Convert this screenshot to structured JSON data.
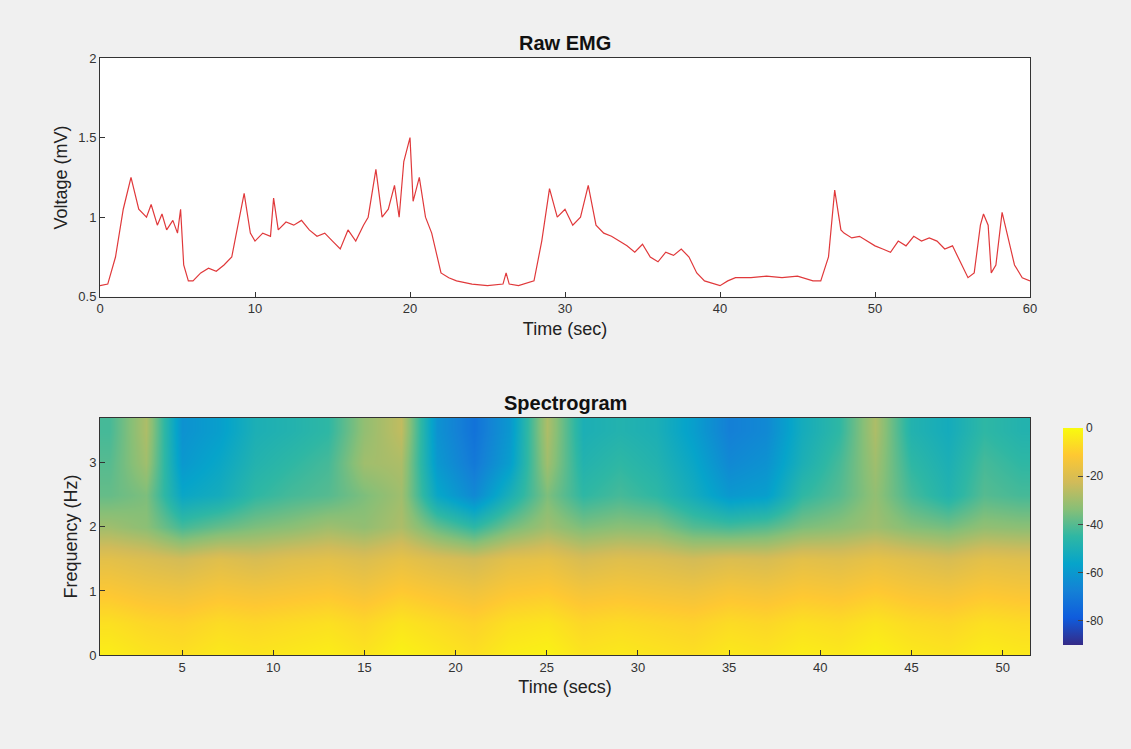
{
  "chart_data": [
    {
      "type": "line",
      "title": "Raw EMG",
      "x_label": "Time (sec)",
      "y_label": "Voltage (mV)",
      "color": "#e0393b",
      "grid": false,
      "xlim": [
        0,
        60
      ],
      "ylim": [
        0.5,
        2
      ],
      "xticks": [
        0,
        10,
        20,
        30,
        40,
        50,
        60
      ],
      "yticks": [
        0.5,
        1,
        1.5,
        2
      ],
      "x": [
        0,
        0.5,
        1,
        1.5,
        2,
        2.5,
        3,
        3.3,
        3.7,
        4,
        4.3,
        4.7,
        5,
        5.2,
        5.4,
        5.7,
        6,
        6.5,
        7,
        7.5,
        8,
        8.5,
        9,
        9.3,
        9.7,
        10,
        10.5,
        11,
        11.2,
        11.5,
        12,
        12.5,
        13,
        13.5,
        14,
        14.5,
        15,
        15.5,
        16,
        16.5,
        17,
        17.3,
        17.8,
        18.2,
        18.6,
        19,
        19.3,
        19.6,
        20,
        20.2,
        20.6,
        21,
        21.4,
        22,
        22.5,
        23,
        24,
        25,
        26,
        26.2,
        26.4,
        27,
        28,
        28.5,
        29,
        29.5,
        30,
        30.5,
        31,
        31.5,
        32,
        32.5,
        33,
        33.5,
        34,
        34.5,
        35,
        35.5,
        36,
        36.5,
        37,
        37.5,
        38,
        38.5,
        39,
        40,
        40.5,
        41,
        42,
        43,
        44,
        45,
        46,
        46.5,
        47,
        47.4,
        47.8,
        48,
        48.5,
        49,
        50,
        50.5,
        51,
        51.5,
        52,
        52.5,
        53,
        53.5,
        54,
        54.5,
        55,
        55.5,
        56,
        56.4,
        56.8,
        57,
        57.3,
        57.5,
        57.8,
        58.2,
        58.5,
        59,
        59.5,
        60
      ],
      "values": [
        0.57,
        0.58,
        0.75,
        1.05,
        1.25,
        1.05,
        1.0,
        1.08,
        0.95,
        1.02,
        0.92,
        0.98,
        0.9,
        1.05,
        0.7,
        0.6,
        0.6,
        0.65,
        0.68,
        0.66,
        0.7,
        0.75,
        1.0,
        1.15,
        0.9,
        0.85,
        0.9,
        0.88,
        1.12,
        0.92,
        0.97,
        0.95,
        0.98,
        0.92,
        0.88,
        0.9,
        0.85,
        0.8,
        0.92,
        0.85,
        0.95,
        1.0,
        1.3,
        1.0,
        1.05,
        1.2,
        1.0,
        1.35,
        1.5,
        1.1,
        1.25,
        1.0,
        0.9,
        0.65,
        0.62,
        0.6,
        0.58,
        0.57,
        0.58,
        0.65,
        0.58,
        0.57,
        0.6,
        0.85,
        1.18,
        1.0,
        1.05,
        0.95,
        1.0,
        1.2,
        0.95,
        0.9,
        0.88,
        0.85,
        0.82,
        0.78,
        0.83,
        0.75,
        0.72,
        0.78,
        0.76,
        0.8,
        0.75,
        0.65,
        0.6,
        0.57,
        0.6,
        0.62,
        0.62,
        0.63,
        0.62,
        0.63,
        0.6,
        0.6,
        0.75,
        1.17,
        0.92,
        0.9,
        0.87,
        0.88,
        0.82,
        0.8,
        0.78,
        0.85,
        0.82,
        0.88,
        0.85,
        0.87,
        0.85,
        0.8,
        0.82,
        0.72,
        0.62,
        0.65,
        0.95,
        1.02,
        0.95,
        0.65,
        0.7,
        1.03,
        0.9,
        0.7,
        0.62,
        0.6
      ]
    },
    {
      "type": "heatmap",
      "title": "Spectrogram",
      "x_label": "Time (secs)",
      "y_label": "Frequency (Hz)",
      "grid": false,
      "xlim": [
        0.5,
        51.5
      ],
      "ylim": [
        0,
        3.7
      ],
      "xticks": [
        5,
        10,
        15,
        20,
        25,
        30,
        35,
        40,
        45,
        50
      ],
      "yticks": [
        0,
        1,
        2,
        3
      ],
      "zlim": [
        -90,
        0
      ],
      "zticks": [
        0,
        -20,
        -40,
        -60,
        -80
      ],
      "x": [
        1,
        3,
        5,
        7,
        9,
        11,
        13,
        15,
        17,
        19,
        21,
        23,
        25,
        27,
        29,
        31,
        33,
        35,
        37,
        39,
        41,
        43,
        45,
        47,
        49,
        51
      ],
      "y": [
        0,
        0.5,
        1,
        1.5,
        2,
        2.5,
        3,
        3.5
      ],
      "z": [
        [
          -3,
          -5,
          -6,
          -4,
          -5,
          -4,
          -3,
          -5,
          -2,
          -4,
          -6,
          -3,
          -2,
          -5,
          -4,
          -5,
          -6,
          -4,
          -5,
          -3,
          -4,
          -2,
          -4,
          -5,
          -3,
          -4
        ],
        [
          -6,
          -8,
          -9,
          -7,
          -8,
          -7,
          -6,
          -8,
          -5,
          -7,
          -9,
          -6,
          -5,
          -8,
          -7,
          -8,
          -9,
          -7,
          -8,
          -6,
          -7,
          -5,
          -7,
          -8,
          -6,
          -7
        ],
        [
          -12,
          -14,
          -15,
          -13,
          -14,
          -13,
          -12,
          -14,
          -11,
          -13,
          -15,
          -12,
          -11,
          -14,
          -13,
          -14,
          -15,
          -13,
          -14,
          -12,
          -13,
          -11,
          -13,
          -14,
          -12,
          -13
        ],
        [
          -18,
          -20,
          -22,
          -19,
          -21,
          -19,
          -18,
          -20,
          -17,
          -20,
          -22,
          -18,
          -17,
          -21,
          -19,
          -20,
          -22,
          -20,
          -21,
          -18,
          -19,
          -17,
          -19,
          -21,
          -18,
          -19
        ],
        [
          -30,
          -33,
          -42,
          -38,
          -35,
          -33,
          -30,
          -32,
          -28,
          -38,
          -45,
          -36,
          -30,
          -35,
          -33,
          -34,
          -40,
          -42,
          -40,
          -35,
          -33,
          -30,
          -34,
          -36,
          -32,
          -33
        ],
        [
          -38,
          -35,
          -55,
          -52,
          -45,
          -42,
          -40,
          -35,
          -30,
          -55,
          -65,
          -50,
          -35,
          -45,
          -42,
          -45,
          -52,
          -60,
          -58,
          -45,
          -40,
          -32,
          -42,
          -48,
          -40,
          -42
        ],
        [
          -40,
          -30,
          -60,
          -55,
          -48,
          -45,
          -42,
          -30,
          -28,
          -60,
          -70,
          -58,
          -30,
          -48,
          -45,
          -48,
          -55,
          -65,
          -62,
          -50,
          -42,
          -30,
          -45,
          -50,
          -42,
          -45
        ],
        [
          -42,
          -28,
          -62,
          -58,
          -50,
          -48,
          -45,
          -32,
          -25,
          -62,
          -72,
          -60,
          -28,
          -50,
          -48,
          -50,
          -58,
          -68,
          -65,
          -52,
          -45,
          -28,
          -48,
          -52,
          -45,
          -48
        ]
      ]
    }
  ]
}
